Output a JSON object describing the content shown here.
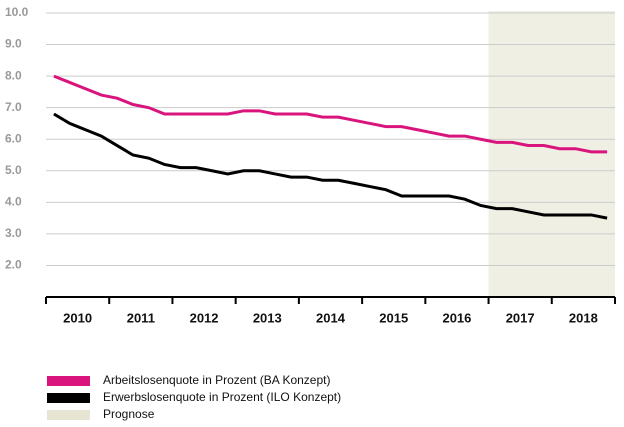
{
  "chart_data": {
    "type": "line",
    "categories": [
      "2010",
      null,
      null,
      null,
      "2011",
      null,
      null,
      null,
      "2012",
      null,
      null,
      null,
      "2013",
      null,
      null,
      null,
      "2014",
      null,
      null,
      null,
      "2015",
      null,
      null,
      null,
      "2016",
      null,
      null,
      null,
      "2017",
      null,
      null,
      null,
      "2018",
      null,
      null,
      null
    ],
    "series": [
      {
        "name": "Arbeitslosenquote in Prozent (BA Konzept)",
        "color": "#d9147d",
        "values": [
          8.0,
          7.8,
          7.6,
          7.4,
          7.3,
          7.1,
          7.0,
          6.8,
          6.8,
          6.8,
          6.8,
          6.8,
          6.9,
          6.9,
          6.8,
          6.8,
          6.8,
          6.7,
          6.7,
          6.6,
          6.5,
          6.4,
          6.4,
          6.3,
          6.2,
          6.1,
          6.1,
          6.0,
          5.9,
          5.9,
          5.8,
          5.8,
          5.7,
          5.7,
          5.6,
          5.6
        ]
      },
      {
        "name": "Erwerbslosenquote in Prozent (ILO Konzept)",
        "color": "#000000",
        "values": [
          6.8,
          6.5,
          6.3,
          6.1,
          5.8,
          5.5,
          5.4,
          5.2,
          5.1,
          5.1,
          5.0,
          4.9,
          5.0,
          5.0,
          4.9,
          4.8,
          4.8,
          4.7,
          4.7,
          4.6,
          4.5,
          4.4,
          4.2,
          4.2,
          4.2,
          4.2,
          4.1,
          3.9,
          3.8,
          3.8,
          3.7,
          3.6,
          3.6,
          3.6,
          3.6,
          3.5
        ]
      }
    ],
    "forecast": {
      "name": "Prognose",
      "color": "#e6e4d2",
      "from": "2017"
    },
    "ylim": [
      1,
      10
    ],
    "yticks": [
      {
        "value": 2,
        "label": "2.0"
      },
      {
        "value": 3,
        "label": "3.0"
      },
      {
        "value": 4,
        "label": "4.0"
      },
      {
        "value": 5,
        "label": "5.0"
      },
      {
        "value": 6,
        "label": "6.0"
      },
      {
        "value": 7,
        "label": "7.0"
      },
      {
        "value": 8,
        "label": "8.0"
      },
      {
        "value": 9,
        "label": "9.0"
      },
      {
        "value": 10,
        "label": "10.0"
      }
    ],
    "grid": true
  }
}
